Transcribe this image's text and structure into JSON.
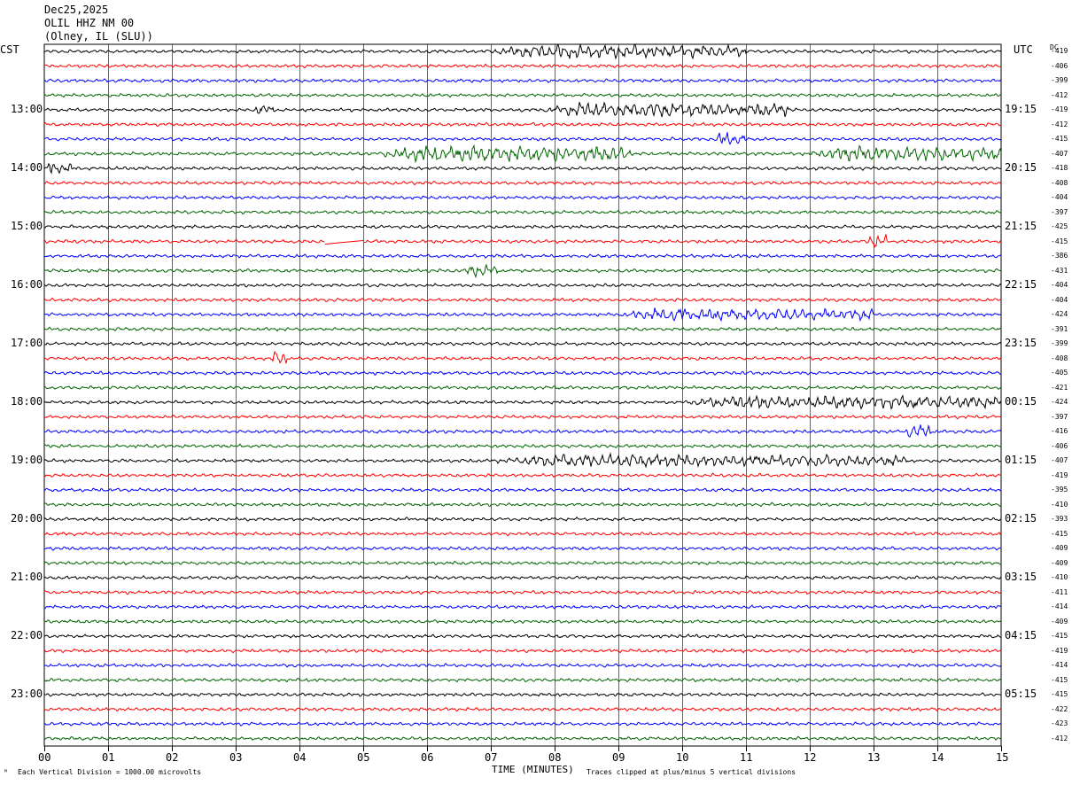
{
  "header": {
    "date": "Dec25,2025",
    "station": "OLIL HHZ NM 00",
    "location": "(Olney, IL (SLU))"
  },
  "left_zone": "CST",
  "right_zone": "UTC",
  "dc_label": "DC",
  "footer": {
    "left": "Each Vertical Division = 1000.00 microvolts",
    "center": "TIME (MINUTES)",
    "right": "Traces clipped at plus/minus 5 vertical divisions"
  },
  "colors": {
    "trace_cycle": [
      "#000000",
      "#ff0000",
      "#0000ff",
      "#006400"
    ],
    "grid": "#000000",
    "background": "#ffffff"
  },
  "chart_data": {
    "type": "line",
    "title": "OLIL HHZ NM 00",
    "xlabel": "TIME (MINUTES)",
    "xlim": [
      0,
      15
    ],
    "x_ticks": [
      "00",
      "01",
      "02",
      "03",
      "04",
      "05",
      "06",
      "07",
      "08",
      "09",
      "10",
      "11",
      "12",
      "13",
      "14",
      "15"
    ],
    "grid": true,
    "trace_count": 48,
    "hour_labels_left": [
      "13:00",
      "14:00",
      "15:00",
      "16:00",
      "17:00",
      "18:00",
      "19:00",
      "20:00",
      "21:00",
      "22:00",
      "23:00"
    ],
    "hour_labels_right": [
      "19:15",
      "20:15",
      "21:15",
      "22:15",
      "23:15",
      "00:15",
      "01:15",
      "02:15",
      "03:15",
      "04:15",
      "05:15"
    ],
    "dc_offsets": [
      -419,
      -406,
      -399,
      -412,
      -419,
      -412,
      -415,
      -407,
      -418,
      -408,
      -404,
      -397,
      -425,
      -415,
      -386,
      -431,
      -404,
      -404,
      -424,
      -391,
      -399,
      -408,
      -405,
      -421,
      -424,
      -397,
      -416,
      -406,
      -407,
      -419,
      -395,
      -410,
      -393,
      -415,
      -409,
      -409,
      -410,
      -411,
      -414,
      -409,
      -415,
      -419,
      -414,
      -415,
      -415,
      -422,
      -423,
      -412
    ],
    "events": [
      {
        "trace": 0,
        "start_min": 7.0,
        "end_min": 11.0,
        "amplitude": 1.8
      },
      {
        "trace": 4,
        "start_min": 7.8,
        "end_min": 11.7,
        "amplitude": 2.0
      },
      {
        "trace": 4,
        "start_min": 3.3,
        "end_min": 3.6,
        "amplitude": 1.5
      },
      {
        "trace": 6,
        "start_min": 10.5,
        "end_min": 11.0,
        "amplitude": 2.0
      },
      {
        "trace": 7,
        "start_min": 5.2,
        "end_min": 9.2,
        "amplitude": 2.3
      },
      {
        "trace": 7,
        "start_min": 12.0,
        "end_min": 15.0,
        "amplitude": 2.0
      },
      {
        "trace": 8,
        "start_min": 0.0,
        "end_min": 0.5,
        "amplitude": 1.6
      },
      {
        "trace": 13,
        "start_min": 12.9,
        "end_min": 13.2,
        "amplitude": 2.0
      },
      {
        "trace": 15,
        "start_min": 6.6,
        "end_min": 7.1,
        "amplitude": 1.6
      },
      {
        "trace": 18,
        "start_min": 9.0,
        "end_min": 13.0,
        "amplitude": 1.7
      },
      {
        "trace": 21,
        "start_min": 3.5,
        "end_min": 3.8,
        "amplitude": 2.0
      },
      {
        "trace": 24,
        "start_min": 10.0,
        "end_min": 15.0,
        "amplitude": 1.8
      },
      {
        "trace": 26,
        "start_min": 13.5,
        "end_min": 13.9,
        "amplitude": 2.2
      },
      {
        "trace": 28,
        "start_min": 7.0,
        "end_min": 13.5,
        "amplitude": 1.6
      }
    ],
    "gaps": [
      {
        "trace": 13,
        "start_min": 4.4,
        "end_min": 5.0
      }
    ]
  }
}
